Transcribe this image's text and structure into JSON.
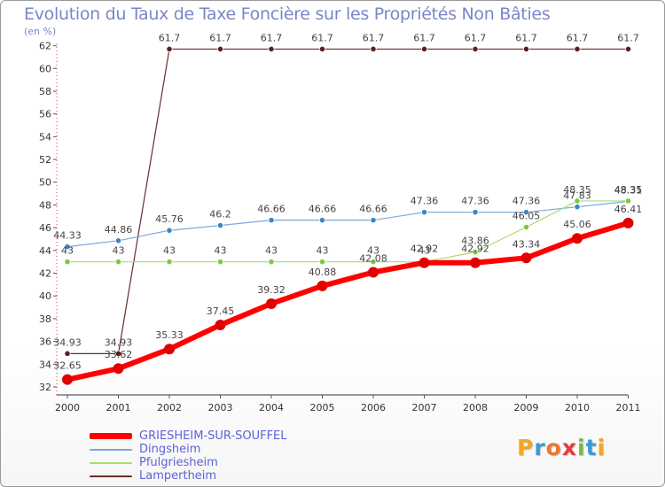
{
  "title": "Evolution du Taux de Taxe Foncière sur les Propriétés Non Bâties",
  "subtitle": "(en %)",
  "logo": {
    "text": "Proxiti",
    "colors": [
      "#f5a623",
      "#3a9ad9",
      "#f0742c",
      "#e23b3b",
      "#7ab743",
      "#3a9ad9",
      "#f5a623"
    ]
  },
  "chart_data": {
    "type": "line",
    "x": [
      "2000",
      "2001",
      "2002",
      "2003",
      "2004",
      "2005",
      "2006",
      "2007",
      "2008",
      "2009",
      "2010",
      "2011"
    ],
    "ylim": [
      31.3,
      62.2
    ],
    "yticks": [
      32,
      34,
      36,
      38,
      40,
      42,
      44,
      46,
      48,
      50,
      52,
      54,
      56,
      58,
      60,
      62
    ],
    "grid": false,
    "legend_position": "bottom-left",
    "series": [
      {
        "name": "Lampertheim",
        "color": "#6b2b2b",
        "marker": "#5a2020",
        "width": 1.2,
        "values": [
          34.93,
          34.93,
          61.7,
          61.7,
          61.7,
          61.7,
          61.7,
          61.7,
          61.7,
          61.7,
          61.7,
          61.7
        ],
        "labels": [
          "34.93",
          "34.93",
          "61.7",
          "61.7",
          "61.7",
          "61.7",
          "61.7",
          "61.7",
          "61.7",
          "61.7",
          "61.7",
          "61.7"
        ]
      },
      {
        "name": "Dingsheim",
        "color": "#7aa8d8",
        "marker": "#3d86c6",
        "width": 1.2,
        "values": [
          44.33,
          44.86,
          45.76,
          46.2,
          46.66,
          46.66,
          46.66,
          47.36,
          47.36,
          47.36,
          47.83,
          48.31
        ],
        "labels": [
          "44.33",
          "44.86",
          "45.76",
          "46.2",
          "46.66",
          "46.66",
          "46.66",
          "47.36",
          "47.36",
          "47.36",
          "47.83",
          "48.31"
        ]
      },
      {
        "name": "Pfulgriesheim",
        "color": "#a6dd73",
        "marker": "#7ac943",
        "width": 1.2,
        "values": [
          43,
          43,
          43,
          43,
          43,
          43,
          43,
          43,
          43.86,
          46.05,
          48.35,
          48.35
        ],
        "labels": [
          "43",
          "43",
          "43",
          "43",
          "43",
          "43",
          "43",
          "43",
          "43.86",
          "46.05",
          "48.35",
          "48.35"
        ]
      },
      {
        "name": "GRIESHEIM-SUR-SOUFFEL",
        "color": "#ff0000",
        "marker": "#e00000",
        "width": 6,
        "values": [
          32.65,
          33.62,
          35.33,
          37.45,
          39.32,
          40.88,
          42.08,
          42.92,
          42.92,
          43.34,
          45.06,
          46.41
        ],
        "labels": [
          "32.65",
          "33.62",
          "35.33",
          "37.45",
          "39.32",
          "40.88",
          "42.08",
          "42.92",
          "42.92",
          "43.34",
          "45.06",
          "46.41"
        ]
      }
    ],
    "legend": [
      {
        "name": "GRIESHEIM-SUR-SOUFFEL",
        "color": "#ff0000",
        "thickness": 7
      },
      {
        "name": "Dingsheim",
        "color": "#7aa8d8",
        "thickness": 2
      },
      {
        "name": "Pfulgriesheim",
        "color": "#a6dd73",
        "thickness": 2
      },
      {
        "name": "Lampertheim",
        "color": "#6b2b2b",
        "thickness": 2
      }
    ]
  }
}
